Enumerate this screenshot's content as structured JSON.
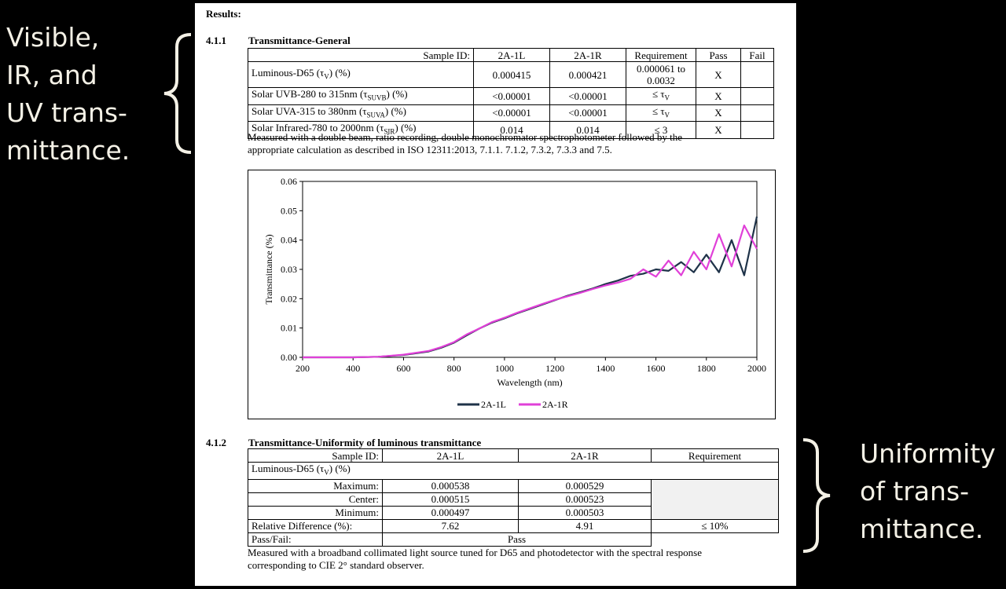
{
  "annotations": {
    "left": [
      "Visible,",
      "IR, and",
      "UV trans-",
      "mittance."
    ],
    "right": [
      "Uniformity",
      "of trans-",
      "mittance."
    ]
  },
  "doc": {
    "results_heading": "Results:",
    "s411": {
      "number": "4.1.1",
      "title": "Transmittance-General",
      "headers": [
        "Sample ID:",
        "2A-1L",
        "2A-1R",
        "Requirement",
        "Pass",
        "Fail"
      ],
      "rows": [
        {
          "label": "Luminous-D65 (τ",
          "sub": "V",
          "suffix": ") (%)",
          "v1": "0.000415",
          "v2": "0.000421",
          "req": "0.000061 to 0.0032",
          "pass": "X",
          "fail": ""
        },
        {
          "label": "Solar UVB-280 to 315nm (τ",
          "sub": "SUVB",
          "suffix": ") (%)",
          "v1": "<0.00001",
          "v2": "<0.00001",
          "req": "≤ τ",
          "req_sub": "V",
          "pass": "X",
          "fail": ""
        },
        {
          "label": "Solar UVA-315 to 380nm (τ",
          "sub": "SUVA",
          "suffix": ") (%)",
          "v1": "<0.00001",
          "v2": "<0.00001",
          "req": "≤ τ",
          "req_sub": "V",
          "pass": "X",
          "fail": ""
        },
        {
          "label": "Solar Infrared-780 to 2000nm (τ",
          "sub": "SIR",
          "suffix": ") (%)",
          "v1": "0.014",
          "v2": "0.014",
          "req": "≤ 3",
          "pass": "X",
          "fail": ""
        }
      ],
      "note_line1": "Measured with a double beam, ratio recording, double monochromator spectrophotometer followed by the",
      "note_line2": "appropriate calculation as described in ISO 12311:2013, 7.1.1. 7.1.2, 7.3.2, 7.3.3 and 7.5."
    },
    "s412": {
      "number": "4.1.2",
      "title": "Transmittance-Uniformity of luminous transmittance",
      "headers": [
        "Sample ID:",
        "2A-1L",
        "2A-1R",
        "Requirement"
      ],
      "group_label": "Luminous-D65 (τ",
      "group_sub": "V",
      "group_suffix": ") (%)",
      "rows": [
        {
          "label": "Maximum:",
          "v1": "0.000538",
          "v2": "0.000529"
        },
        {
          "label": "Center:",
          "v1": "0.000515",
          "v2": "0.000523"
        },
        {
          "label": "Minimum:",
          "v1": "0.000497",
          "v2": "0.000503"
        }
      ],
      "reldiff": {
        "label": "Relative Difference (%):",
        "v1": "7.62",
        "v2": "4.91",
        "req": "≤ 10%"
      },
      "passfail": {
        "label": "Pass/Fail:",
        "value": "Pass"
      },
      "note_line1": "Measured with a broadband collimated light source tuned for D65 and photodetector with the spectral response",
      "note_line2": "corresponding to CIE 2° standard observer."
    }
  },
  "chart_data": {
    "type": "line",
    "xlabel": "Wavelength (nm)",
    "ylabel": "Transmittance (%)",
    "xlim": [
      200,
      2000
    ],
    "ylim": [
      0,
      0.06
    ],
    "xticks": [
      200,
      400,
      600,
      800,
      1000,
      1200,
      1400,
      1600,
      1800,
      2000
    ],
    "yticks": [
      "0.00",
      "0.01",
      "0.02",
      "0.03",
      "0.04",
      "0.05",
      "0.06"
    ],
    "legend_position": "bottom",
    "series": [
      {
        "name": "2A-1L",
        "color": "#1f3349",
        "x": [
          200,
          400,
          500,
          600,
          700,
          750,
          800,
          850,
          900,
          950,
          1000,
          1050,
          1100,
          1150,
          1200,
          1250,
          1300,
          1350,
          1400,
          1450,
          1500,
          1550,
          1600,
          1650,
          1700,
          1750,
          1800,
          1850,
          1900,
          1950,
          2000
        ],
        "y": [
          0.0,
          0.0,
          0.0002,
          0.0008,
          0.002,
          0.0033,
          0.005,
          0.0075,
          0.0098,
          0.0118,
          0.0133,
          0.015,
          0.0165,
          0.018,
          0.0195,
          0.021,
          0.0222,
          0.0235,
          0.025,
          0.0262,
          0.0278,
          0.0285,
          0.03,
          0.0295,
          0.0325,
          0.029,
          0.035,
          0.029,
          0.04,
          0.028,
          0.048
        ]
      },
      {
        "name": "2A-1R",
        "color": "#e040d8",
        "x": [
          200,
          400,
          500,
          600,
          700,
          750,
          800,
          850,
          900,
          950,
          1000,
          1050,
          1100,
          1150,
          1200,
          1250,
          1300,
          1350,
          1400,
          1450,
          1500,
          1550,
          1600,
          1650,
          1700,
          1750,
          1800,
          1850,
          1900,
          1950,
          2000
        ],
        "y": [
          0.0,
          0.0,
          0.0002,
          0.0009,
          0.0022,
          0.0035,
          0.0052,
          0.0078,
          0.0098,
          0.012,
          0.0135,
          0.0152,
          0.0167,
          0.0182,
          0.0196,
          0.0208,
          0.022,
          0.0233,
          0.0245,
          0.0255,
          0.0268,
          0.03,
          0.0275,
          0.033,
          0.028,
          0.036,
          0.03,
          0.042,
          0.031,
          0.045,
          0.037
        ]
      }
    ]
  }
}
